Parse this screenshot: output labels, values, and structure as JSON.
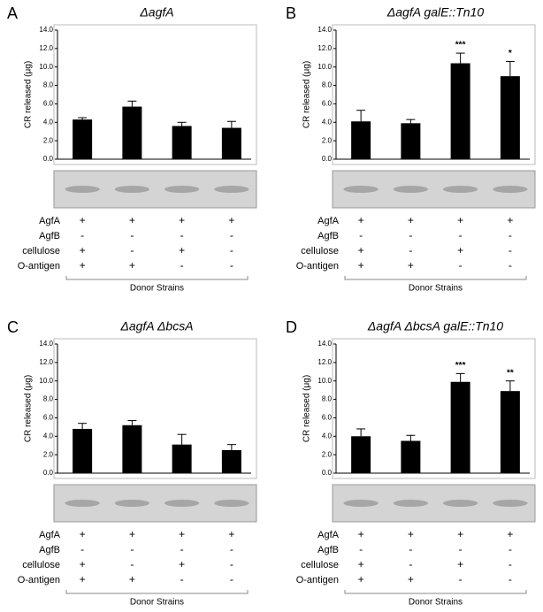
{
  "chart_data": [
    {
      "type": "bar",
      "panel": "A",
      "title": "ΔagfA",
      "ylabel": "CR released (μg)",
      "color": "#000000",
      "ylim": [
        0,
        14
      ],
      "yticks": [
        {
          "value": 0,
          "label": "0.0"
        },
        {
          "value": 2,
          "label": "2.0"
        },
        {
          "value": 4,
          "label": "4.0"
        },
        {
          "value": 6,
          "label": "6.0"
        },
        {
          "value": 8,
          "label": "8.0"
        },
        {
          "value": 10,
          "label": "10.0"
        },
        {
          "value": 12,
          "label": "12.0"
        },
        {
          "value": 14,
          "label": "14.0"
        }
      ],
      "values": [
        4.3,
        5.7,
        3.6,
        3.4
      ],
      "errors": [
        0.2,
        0.6,
        0.4,
        0.7
      ],
      "significance": [
        null,
        null,
        null,
        null
      ],
      "rows": [
        {
          "name": "AgfA",
          "marks": [
            "+",
            "+",
            "+",
            "+"
          ]
        },
        {
          "name": "AgfB",
          "marks": [
            "-",
            "-",
            "-",
            "-"
          ]
        },
        {
          "name": "cellulose",
          "marks": [
            "+",
            "-",
            "+",
            "-"
          ]
        },
        {
          "name": "O-antigen",
          "marks": [
            "+",
            "+",
            "-",
            "-"
          ]
        }
      ],
      "xlabel": "Donor Strains"
    },
    {
      "type": "bar",
      "panel": "B",
      "title": "ΔagfA galE::Tn10",
      "ylabel": "CR released (μg)",
      "color": "#000000",
      "ylim": [
        0,
        14
      ],
      "yticks": [
        {
          "value": 0,
          "label": "0.0"
        },
        {
          "value": 2,
          "label": "2.0"
        },
        {
          "value": 4,
          "label": "4.0"
        },
        {
          "value": 6,
          "label": "6.0"
        },
        {
          "value": 8,
          "label": "8.0"
        },
        {
          "value": 10,
          "label": "10.0"
        },
        {
          "value": 12,
          "label": "12.0"
        },
        {
          "value": 14,
          "label": "14.0"
        }
      ],
      "values": [
        4.1,
        3.9,
        10.4,
        9.0
      ],
      "errors": [
        1.2,
        0.4,
        1.1,
        1.6
      ],
      "significance": [
        null,
        null,
        "***",
        "*"
      ],
      "rows": [
        {
          "name": "AgfA",
          "marks": [
            "+",
            "+",
            "+",
            "+"
          ]
        },
        {
          "name": "AgfB",
          "marks": [
            "-",
            "-",
            "-",
            "-"
          ]
        },
        {
          "name": "cellulose",
          "marks": [
            "+",
            "-",
            "+",
            "-"
          ]
        },
        {
          "name": "O-antigen",
          "marks": [
            "+",
            "+",
            "-",
            "-"
          ]
        }
      ],
      "xlabel": "Donor Strains"
    },
    {
      "type": "bar",
      "panel": "C",
      "title": "ΔagfA ΔbcsA",
      "ylabel": "CR released (μg)",
      "color": "#000000",
      "ylim": [
        0,
        14
      ],
      "yticks": [
        {
          "value": 0,
          "label": "0.0"
        },
        {
          "value": 2,
          "label": "2.0"
        },
        {
          "value": 4,
          "label": "4.0"
        },
        {
          "value": 6,
          "label": "6.0"
        },
        {
          "value": 8,
          "label": "8.0"
        },
        {
          "value": 10,
          "label": "10.0"
        },
        {
          "value": 12,
          "label": "12.0"
        },
        {
          "value": 14,
          "label": "14.0"
        }
      ],
      "values": [
        4.8,
        5.2,
        3.1,
        2.5
      ],
      "errors": [
        0.6,
        0.5,
        1.1,
        0.6
      ],
      "significance": [
        null,
        null,
        null,
        null
      ],
      "rows": [
        {
          "name": "AgfA",
          "marks": [
            "+",
            "+",
            "+",
            "+"
          ]
        },
        {
          "name": "AgfB",
          "marks": [
            "-",
            "-",
            "-",
            "-"
          ]
        },
        {
          "name": "cellulose",
          "marks": [
            "+",
            "-",
            "+",
            "-"
          ]
        },
        {
          "name": "O-antigen",
          "marks": [
            "+",
            "+",
            "-",
            "-"
          ]
        }
      ],
      "xlabel": "Donor Strains"
    },
    {
      "type": "bar",
      "panel": "D",
      "title": "ΔagfA ΔbcsA galE::Tn10",
      "ylabel": "CR released (μg)",
      "color": "#000000",
      "ylim": [
        0,
        14
      ],
      "yticks": [
        {
          "value": 0,
          "label": "0.0"
        },
        {
          "value": 2,
          "label": "2.0"
        },
        {
          "value": 4,
          "label": "4.0"
        },
        {
          "value": 6,
          "label": "6.0"
        },
        {
          "value": 8,
          "label": "8.0"
        },
        {
          "value": 10,
          "label": "10.0"
        },
        {
          "value": 12,
          "label": "12.0"
        },
        {
          "value": 14,
          "label": "14.0"
        }
      ],
      "values": [
        4.0,
        3.5,
        9.9,
        8.9
      ],
      "errors": [
        0.8,
        0.6,
        0.9,
        1.1
      ],
      "significance": [
        null,
        null,
        "***",
        "**"
      ],
      "rows": [
        {
          "name": "AgfA",
          "marks": [
            "+",
            "+",
            "+",
            "+"
          ]
        },
        {
          "name": "AgfB",
          "marks": [
            "-",
            "-",
            "-",
            "-"
          ]
        },
        {
          "name": "cellulose",
          "marks": [
            "+",
            "-",
            "+",
            "-"
          ]
        },
        {
          "name": "O-antigen",
          "marks": [
            "+",
            "+",
            "-",
            "-"
          ]
        }
      ],
      "xlabel": "Donor Strains"
    }
  ]
}
